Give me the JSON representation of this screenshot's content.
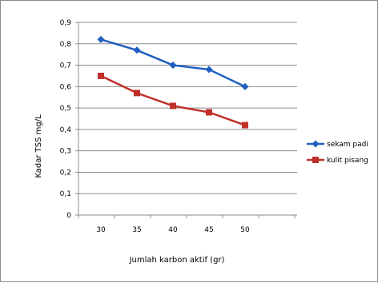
{
  "chart_data": {
    "type": "line",
    "title": "",
    "xlabel": "Jumlah karbon aktif (gr)",
    "ylabel": "Kadar TSS mg/L",
    "categories": [
      "30",
      "35",
      "40",
      "45",
      "50"
    ],
    "ylim": [
      0,
      0.9
    ],
    "yticks": [
      "0",
      "0,1",
      "0,2",
      "0,3",
      "0,4",
      "0,5",
      "0,6",
      "0,7",
      "0,8",
      "0,9"
    ],
    "grid": "horizontal",
    "legend_position": "right",
    "series": [
      {
        "name": "sekam padi",
        "values": [
          0.82,
          0.77,
          0.7,
          0.68,
          0.6
        ],
        "color": "#1f5fbf",
        "marker": "diamond"
      },
      {
        "name": "kulit pisang",
        "values": [
          0.65,
          0.57,
          0.51,
          0.48,
          0.42
        ],
        "color": "#c0302a",
        "marker": "square"
      }
    ]
  }
}
